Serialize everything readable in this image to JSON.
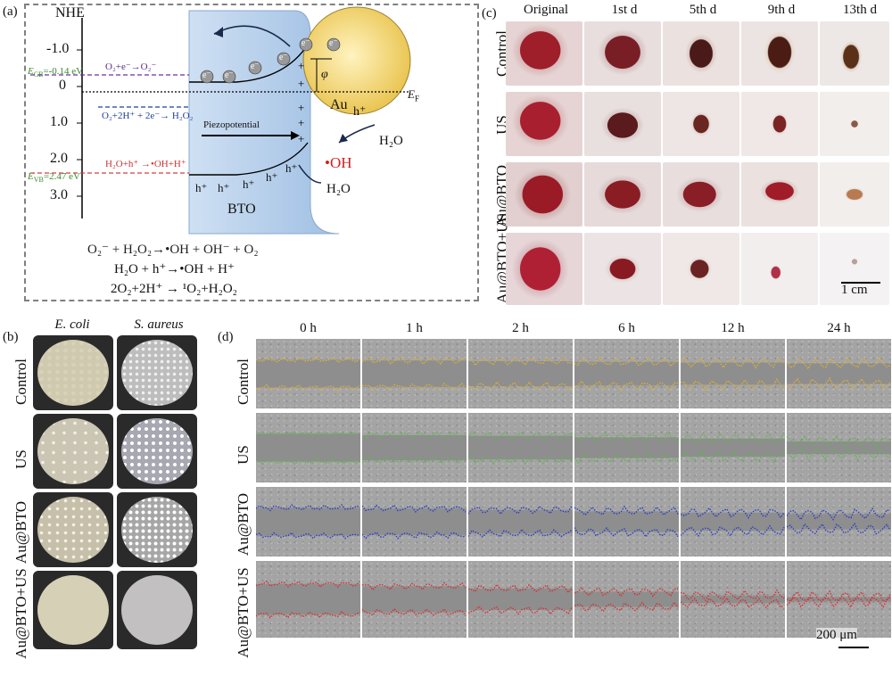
{
  "panel_a": {
    "label": "(a)",
    "axis_title": "NHE",
    "ticks": [
      "-1.0",
      "0",
      "1.0",
      "2.0",
      "3.0"
    ],
    "ecb_label": "E",
    "ecb_sub": "CB",
    "ecb_value": "=-0.14 eV",
    "evb_label": "E",
    "evb_sub": "VB",
    "evb_value": "=2.47 eV",
    "reaction_o2": "O₂+e⁻→O₂⁻",
    "reaction_h2o2": "O₂+2H⁺ + 2e⁻→ H₂O₂",
    "reaction_oh": "H₂O+h⁺ →•OH+H⁺",
    "electron": "e⁻",
    "hole": "h⁺",
    "piezo_label": "Piezopotential",
    "bto_label": "BTO",
    "au_label": "Au",
    "phi": "φ",
    "ef_label": "E",
    "ef_sub": "F",
    "h2o_1": "H₂O",
    "h2o_2": "H₂O",
    "oh_radical": "•OH",
    "eq1": "O₂⁻ + H₂O₂→•OH + OH⁻ + O₂",
    "eq2": "H₂O + h⁺→•OH + H⁺",
    "eq3": "2O₂+2H⁺ → ¹O₂+H₂O₂"
  },
  "panel_b": {
    "label": "(b)",
    "columns": [
      "E. coli",
      "S. aureus"
    ],
    "rows": [
      "Control",
      "US",
      "Au@BTO",
      "Au@BTO+US"
    ]
  },
  "panel_c": {
    "label": "(c)",
    "columns": [
      "Original",
      "1st d",
      "5th d",
      "9th d",
      "13th d"
    ],
    "rows": [
      "Control",
      "US",
      "Au@BTO",
      "Au@BTO+US"
    ],
    "scale": "1 cm"
  },
  "panel_d": {
    "label": "(d)",
    "columns": [
      "0 h",
      "1 h",
      "2 h",
      "6 h",
      "12 h",
      "24 h"
    ],
    "rows": [
      "Control",
      "US",
      "Au@BTO",
      "Au@BTO+US"
    ],
    "scale": "200 μm",
    "row_colors": [
      "#e0b030",
      "#5cb84a",
      "#2b3fc9",
      "#d93030"
    ]
  }
}
